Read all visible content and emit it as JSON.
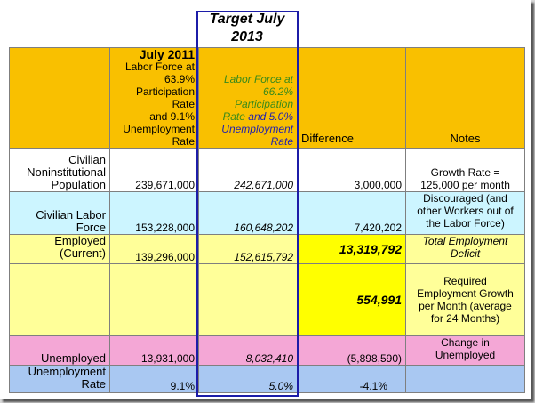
{
  "title_line1": "Target July",
  "title_line2": "2013",
  "header": {
    "july2011_title": "July 2011",
    "july2011_line1": "Labor Force at",
    "july2011_line2": "63.9%",
    "july2011_line3": "Participation Rate",
    "july2011_line4": "and 9.1%",
    "july2011_line5": "Unemployment",
    "july2011_line6": "Rate",
    "target_line1": "Labor Force at",
    "target_line2": "66.2%",
    "target_line3": "Participation",
    "target_line4a": "Rate",
    "target_line4b": "and",
    "target_line4c": "5.0%",
    "target_line5": "Unemployment",
    "target_line6": "Rate",
    "difference": "Difference",
    "notes": "Notes"
  },
  "rows": {
    "population": {
      "label1": "Civilian",
      "label2": "Noninstitutional",
      "label3": "Population",
      "july2011": "239,671,000",
      "target": "242,671,000",
      "difference": "3,000,000",
      "note1": "Growth Rate =",
      "note2": "125,000 per month"
    },
    "labor_force": {
      "label1": "Civilian Labor",
      "label2": "Force",
      "july2011": "153,228,000",
      "target": "160,648,202",
      "difference": "7,420,202",
      "note1": "Discouraged (and",
      "note2": "other Workers out of",
      "note3": "the Labor Force)"
    },
    "employed": {
      "label1": "Employed",
      "label2": "(Current)",
      "july2011": "139,296,000",
      "target": "152,615,792",
      "difference": "13,319,792",
      "note1": "Total Employment",
      "note2": "Deficit"
    },
    "growth": {
      "difference": "554,991",
      "note1": "Required",
      "note2": "Employment Growth",
      "note3": "per Month (average",
      "note4": "for 24 Months)"
    },
    "unemployed": {
      "label": "Unemployed",
      "july2011": "13,931,000",
      "target": "8,032,410",
      "difference": "(5,898,590)",
      "note1": "Change in",
      "note2": "Unemployed"
    },
    "unemployment_rate": {
      "label1": "Unemployment",
      "label2": "Rate",
      "july2011": "9.1%",
      "target": "5.0%",
      "difference": "-4.1%"
    }
  }
}
